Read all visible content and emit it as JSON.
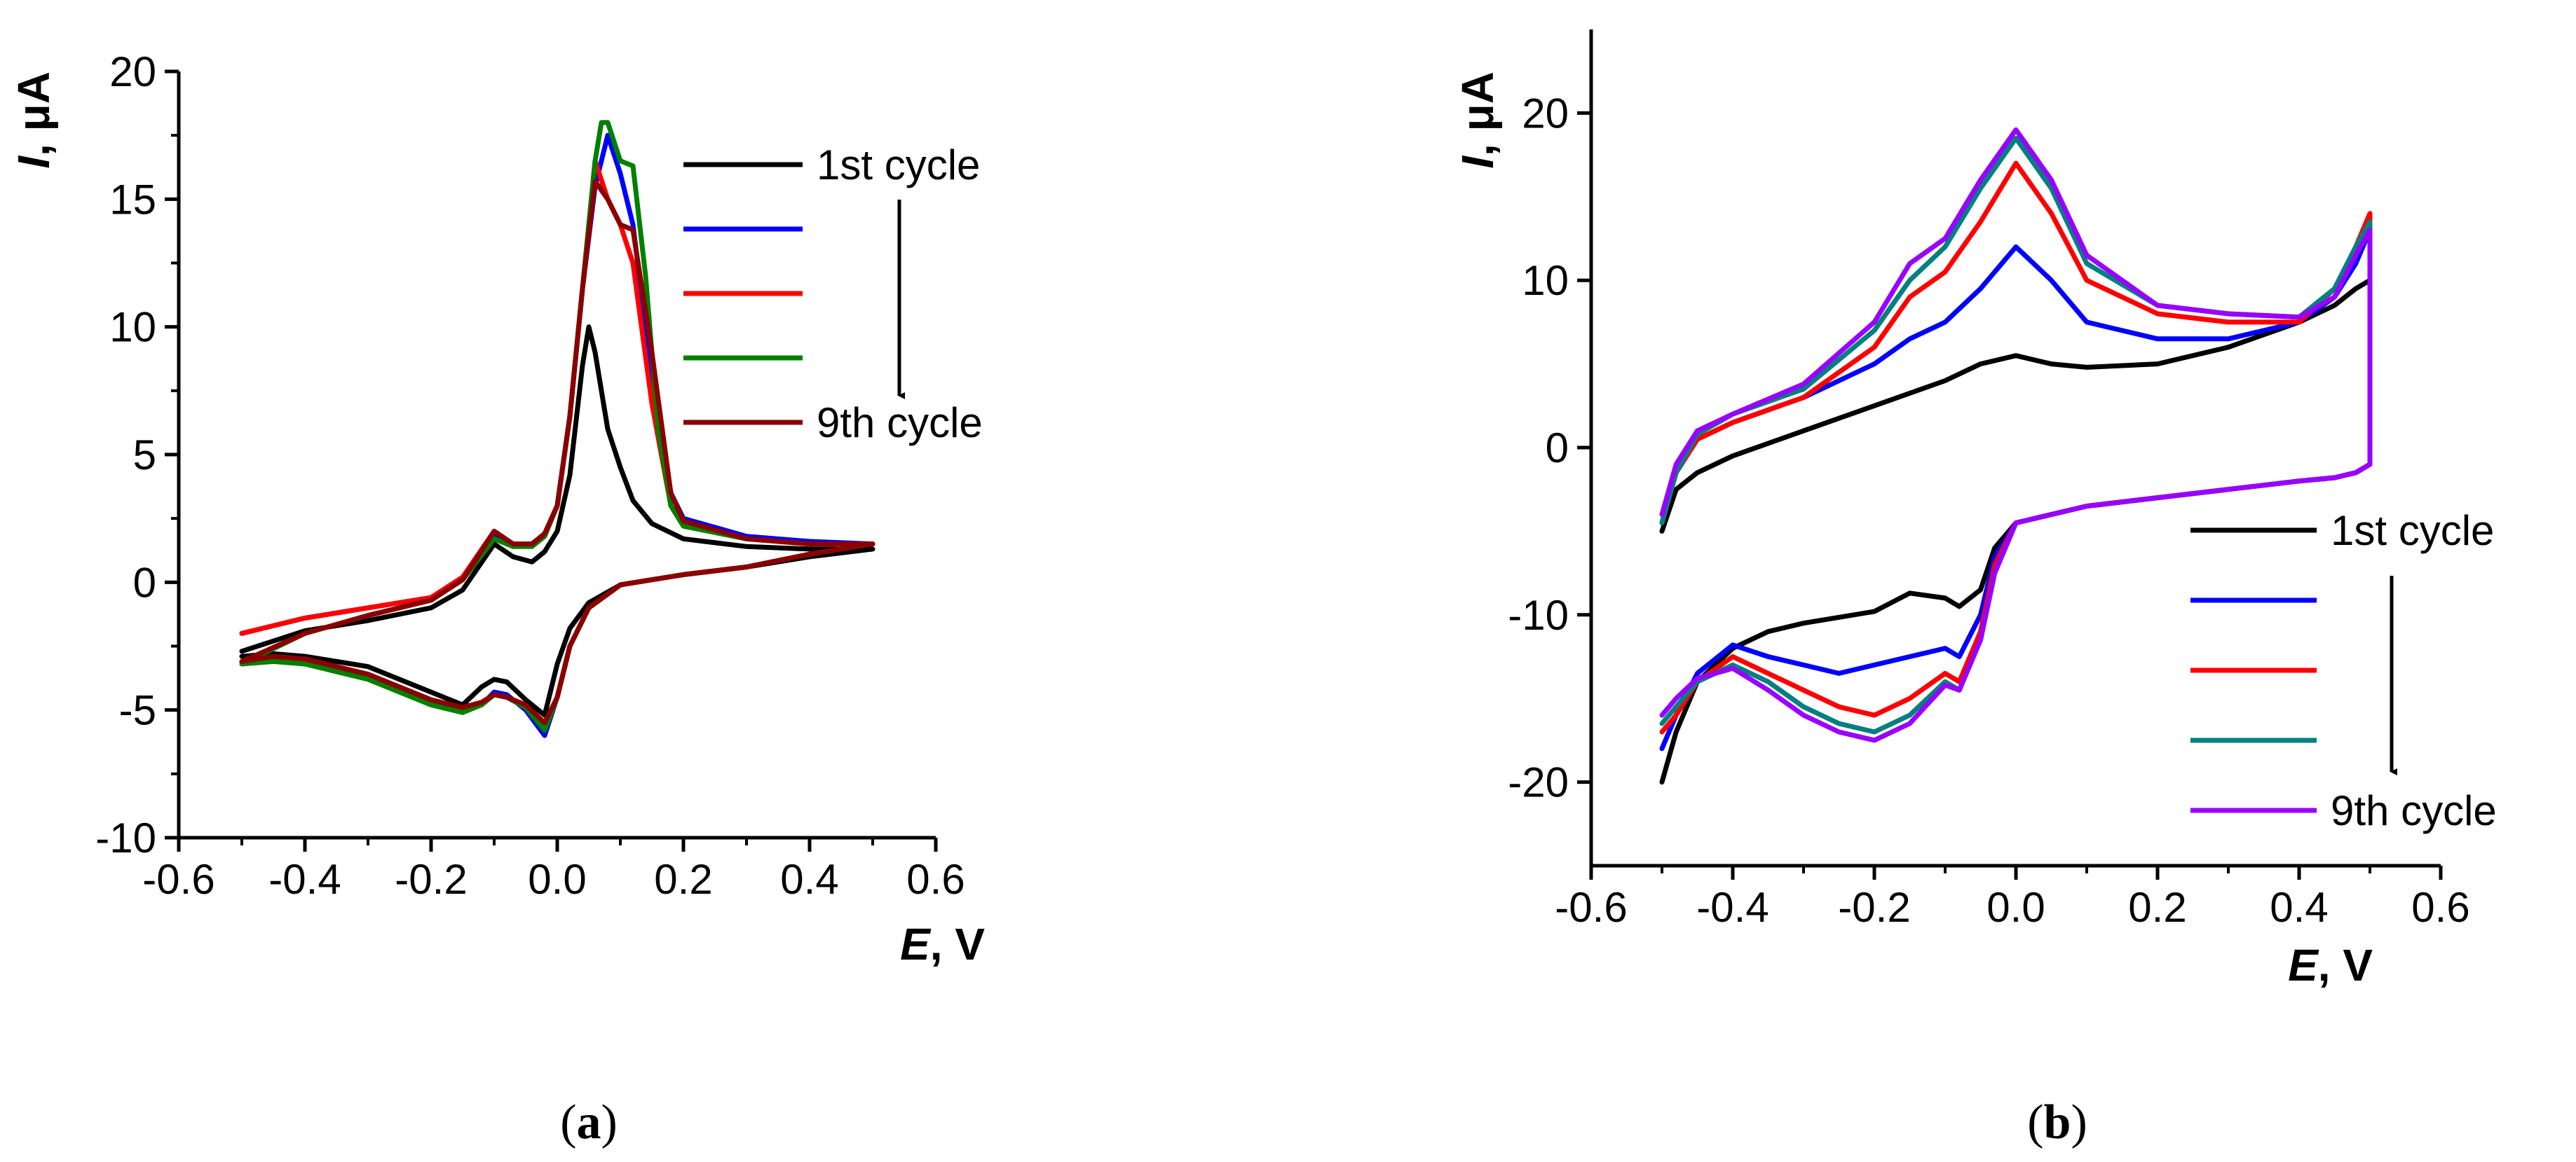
{
  "chart_data": [
    {
      "type": "line",
      "panel": "a",
      "caption": "(a)",
      "xlabel": "E, V",
      "ylabel": "I, μA",
      "xlim": [
        -0.6,
        0.6
      ],
      "ylim": [
        -10,
        20
      ],
      "xticks": [
        -0.6,
        -0.4,
        -0.2,
        0.0,
        0.2,
        0.4,
        0.6
      ],
      "xtick_labels": [
        "-0.6",
        "-0.4",
        "-0.2",
        "0.0",
        "0.2",
        "0.4",
        "0.6"
      ],
      "yticks": [
        -10,
        -5,
        0,
        5,
        10,
        15,
        20
      ],
      "ytick_labels": [
        "-10",
        "-5",
        "0",
        "5",
        "10",
        "15",
        "20"
      ],
      "legend_position": "top-right",
      "legend_arrow_from": "1st cycle",
      "legend_arrow_to": "9th cycle",
      "series": [
        {
          "name": "1st cycle",
          "color": "#000000",
          "x": [
            -0.5,
            -0.4,
            -0.3,
            -0.2,
            -0.15,
            -0.1,
            -0.07,
            -0.04,
            -0.02,
            0.0,
            0.02,
            0.04,
            0.05,
            0.06,
            0.08,
            0.1,
            0.12,
            0.15,
            0.2,
            0.3,
            0.4,
            0.5,
            0.5,
            0.4,
            0.3,
            0.2,
            0.1,
            0.05,
            0.02,
            0.0,
            -0.02,
            -0.05,
            -0.08,
            -0.1,
            -0.12,
            -0.15,
            -0.2,
            -0.3,
            -0.4,
            -0.45,
            -0.5
          ],
          "y": [
            -2.7,
            -1.9,
            -1.5,
            -1.0,
            -0.3,
            1.5,
            1.0,
            0.8,
            1.2,
            2.0,
            4.2,
            8.5,
            10.0,
            9.0,
            6.0,
            4.5,
            3.2,
            2.3,
            1.7,
            1.4,
            1.3,
            1.3,
            1.3,
            1.0,
            0.6,
            0.3,
            -0.1,
            -0.8,
            -1.8,
            -3.2,
            -5.2,
            -4.6,
            -3.9,
            -3.8,
            -4.1,
            -4.8,
            -4.3,
            -3.3,
            -2.9,
            -2.8,
            -2.9
          ]
        },
        {
          "name": "",
          "color": "#0000ff",
          "x": [
            -0.5,
            -0.4,
            -0.3,
            -0.2,
            -0.15,
            -0.1,
            -0.07,
            -0.04,
            -0.02,
            0.0,
            0.02,
            0.04,
            0.06,
            0.08,
            0.1,
            0.12,
            0.15,
            0.18,
            0.2,
            0.3,
            0.4,
            0.5,
            0.5,
            0.4,
            0.3,
            0.2,
            0.1,
            0.05,
            0.02,
            0.0,
            -0.02,
            -0.05,
            -0.08,
            -0.1,
            -0.12,
            -0.15,
            -0.2,
            -0.3,
            -0.4,
            -0.45,
            -0.5
          ],
          "y": [
            -2.0,
            -1.4,
            -1.0,
            -0.6,
            0.2,
            1.8,
            1.4,
            1.5,
            1.9,
            3.0,
            6.5,
            11.5,
            15.5,
            17.5,
            16.0,
            14.0,
            8.0,
            3.5,
            2.5,
            1.8,
            1.6,
            1.5,
            1.5,
            1.1,
            0.6,
            0.3,
            -0.1,
            -1.0,
            -2.5,
            -4.5,
            -6.0,
            -5.0,
            -4.4,
            -4.3,
            -4.8,
            -5.0,
            -4.6,
            -3.6,
            -3.1,
            -3.0,
            -3.1
          ]
        },
        {
          "name": "",
          "color": "#ff0000",
          "x": [
            -0.5,
            -0.4,
            -0.3,
            -0.2,
            -0.15,
            -0.1,
            -0.07,
            -0.04,
            -0.02,
            0.0,
            0.02,
            0.04,
            0.06,
            0.08,
            0.1,
            0.12,
            0.15,
            0.18,
            0.2,
            0.3,
            0.4,
            0.5,
            0.5,
            0.4,
            0.3,
            0.2,
            0.1,
            0.05,
            0.02,
            0.0,
            -0.02,
            -0.05,
            -0.08,
            -0.1,
            -0.12,
            -0.15,
            -0.2,
            -0.3,
            -0.4,
            -0.45,
            -0.5
          ],
          "y": [
            -2.0,
            -1.4,
            -1.0,
            -0.6,
            0.2,
            2.0,
            1.5,
            1.5,
            1.9,
            3.0,
            6.5,
            11.5,
            16.5,
            15.0,
            14.0,
            12.5,
            7.0,
            3.0,
            2.2,
            1.7,
            1.5,
            1.5,
            1.5,
            1.1,
            0.6,
            0.3,
            -0.1,
            -1.0,
            -2.5,
            -4.5,
            -5.8,
            -4.9,
            -4.5,
            -4.4,
            -4.7,
            -4.9,
            -4.6,
            -3.6,
            -3.0,
            -3.0,
            -3.1
          ]
        },
        {
          "name": "",
          "color": "#008000",
          "x": [
            -0.5,
            -0.4,
            -0.3,
            -0.2,
            -0.15,
            -0.1,
            -0.07,
            -0.04,
            -0.02,
            0.0,
            0.02,
            0.04,
            0.06,
            0.07,
            0.08,
            0.1,
            0.12,
            0.14,
            0.16,
            0.18,
            0.2,
            0.3,
            0.4,
            0.5,
            0.5,
            0.4,
            0.3,
            0.2,
            0.1,
            0.05,
            0.02,
            0.0,
            -0.02,
            -0.05,
            -0.08,
            -0.1,
            -0.12,
            -0.15,
            -0.2,
            -0.3,
            -0.4,
            -0.45,
            -0.5
          ],
          "y": [
            -3.2,
            -2.0,
            -1.3,
            -0.7,
            0.1,
            1.7,
            1.4,
            1.4,
            1.8,
            3.0,
            6.5,
            11.5,
            16.5,
            18.0,
            18.0,
            16.5,
            16.3,
            12.0,
            6.0,
            3.0,
            2.2,
            1.7,
            1.5,
            1.5,
            1.5,
            1.1,
            0.6,
            0.3,
            -0.1,
            -1.0,
            -2.5,
            -4.5,
            -5.8,
            -4.9,
            -4.5,
            -4.4,
            -4.8,
            -5.1,
            -4.8,
            -3.8,
            -3.2,
            -3.1,
            -3.2
          ]
        },
        {
          "name": "9th cycle",
          "color": "#8b0000",
          "x": [
            -0.5,
            -0.4,
            -0.3,
            -0.2,
            -0.15,
            -0.1,
            -0.07,
            -0.04,
            -0.02,
            0.0,
            0.02,
            0.04,
            0.06,
            0.08,
            0.1,
            0.12,
            0.15,
            0.18,
            0.2,
            0.3,
            0.4,
            0.5,
            0.5,
            0.4,
            0.3,
            0.2,
            0.1,
            0.05,
            0.02,
            0.0,
            -0.02,
            -0.05,
            -0.08,
            -0.1,
            -0.12,
            -0.15,
            -0.2,
            -0.3,
            -0.4,
            -0.45,
            -0.5
          ],
          "y": [
            -3.1,
            -2.0,
            -1.3,
            -0.7,
            0.1,
            2.0,
            1.5,
            1.5,
            1.9,
            3.0,
            6.5,
            11.5,
            15.7,
            15.0,
            14.0,
            13.8,
            9.0,
            3.5,
            2.4,
            1.7,
            1.5,
            1.5,
            1.5,
            1.1,
            0.6,
            0.3,
            -0.1,
            -1.0,
            -2.5,
            -4.5,
            -5.5,
            -4.8,
            -4.5,
            -4.4,
            -4.7,
            -4.9,
            -4.6,
            -3.6,
            -3.0,
            -2.9,
            -3.1
          ]
        }
      ]
    },
    {
      "type": "line",
      "panel": "b",
      "caption": "(b)",
      "xlabel": "E, V",
      "ylabel": "I, μA",
      "xlim": [
        -0.6,
        0.6
      ],
      "ylim": [
        -25,
        25
      ],
      "xticks": [
        -0.6,
        -0.4,
        -0.2,
        0.0,
        0.2,
        0.4,
        0.6
      ],
      "xtick_labels": [
        "-0.6",
        "-0.4",
        "-0.2",
        "0.0",
        "0.2",
        "0.4",
        "0.6"
      ],
      "yticks": [
        -20,
        -10,
        0,
        10,
        20
      ],
      "ytick_labels": [
        "-20",
        "-10",
        "0",
        "10",
        "20"
      ],
      "legend_position": "bottom-right",
      "legend_arrow_from": "1st cycle",
      "legend_arrow_to": "9th cycle",
      "series": [
        {
          "name": "1st cycle",
          "color": "#000000",
          "x": [
            -0.5,
            -0.48,
            -0.45,
            -0.4,
            -0.3,
            -0.2,
            -0.1,
            -0.05,
            0.0,
            0.05,
            0.1,
            0.2,
            0.3,
            0.4,
            0.45,
            0.48,
            0.5,
            0.5,
            0.48,
            0.45,
            0.4,
            0.3,
            0.2,
            0.1,
            0.0,
            -0.03,
            -0.05,
            -0.08,
            -0.1,
            -0.15,
            -0.2,
            -0.3,
            -0.35,
            -0.4,
            -0.45,
            -0.48,
            -0.5
          ],
          "y": [
            -5.0,
            -2.5,
            -1.5,
            -0.5,
            1.0,
            2.5,
            4.0,
            5.0,
            5.5,
            5.0,
            4.8,
            5.0,
            6.0,
            7.5,
            8.5,
            9.5,
            10.0,
            -1.0,
            -1.5,
            -1.8,
            -2.0,
            -2.5,
            -3.0,
            -3.5,
            -4.5,
            -6.0,
            -8.5,
            -9.5,
            -9.0,
            -8.7,
            -9.8,
            -10.5,
            -11.0,
            -12.0,
            -14.0,
            -17.0,
            -20.0
          ]
        },
        {
          "name": "",
          "color": "#0000ff",
          "x": [
            -0.5,
            -0.48,
            -0.45,
            -0.4,
            -0.3,
            -0.2,
            -0.15,
            -0.1,
            -0.05,
            0.0,
            0.05,
            0.1,
            0.2,
            0.3,
            0.4,
            0.45,
            0.48,
            0.5,
            0.5,
            0.48,
            0.45,
            0.4,
            0.3,
            0.2,
            0.1,
            0.0,
            -0.03,
            -0.05,
            -0.08,
            -0.1,
            -0.15,
            -0.2,
            -0.25,
            -0.3,
            -0.35,
            -0.4,
            -0.45,
            -0.48,
            -0.5
          ],
          "y": [
            -4.5,
            -1.5,
            0.5,
            1.5,
            3.0,
            5.0,
            6.5,
            7.5,
            9.5,
            12.0,
            10.0,
            7.5,
            6.5,
            6.5,
            7.5,
            9.0,
            11.0,
            13.0,
            -1.0,
            -1.5,
            -1.8,
            -2.0,
            -2.5,
            -3.0,
            -3.5,
            -4.5,
            -6.5,
            -10.0,
            -12.5,
            -12.0,
            -12.5,
            -13.0,
            -13.5,
            -13.0,
            -12.5,
            -11.8,
            -13.5,
            -16.0,
            -18.0
          ]
        },
        {
          "name": "",
          "color": "#ff0000",
          "x": [
            -0.5,
            -0.48,
            -0.45,
            -0.4,
            -0.3,
            -0.2,
            -0.15,
            -0.1,
            -0.05,
            0.0,
            0.05,
            0.1,
            0.2,
            0.3,
            0.4,
            0.45,
            0.48,
            0.5,
            0.5,
            0.48,
            0.45,
            0.4,
            0.3,
            0.2,
            0.1,
            0.0,
            -0.03,
            -0.05,
            -0.08,
            -0.1,
            -0.15,
            -0.2,
            -0.25,
            -0.3,
            -0.35,
            -0.4,
            -0.45,
            -0.48,
            -0.5
          ],
          "y": [
            -4.5,
            -1.5,
            0.5,
            1.5,
            3.0,
            6.0,
            9.0,
            10.5,
            13.5,
            17.0,
            14.0,
            10.0,
            8.0,
            7.5,
            7.5,
            9.5,
            12.0,
            14.0,
            -1.0,
            -1.5,
            -1.8,
            -2.0,
            -2.5,
            -3.0,
            -3.5,
            -4.5,
            -7.0,
            -11.0,
            -14.0,
            -13.5,
            -15.0,
            -16.0,
            -15.5,
            -14.5,
            -13.5,
            -12.5,
            -14.0,
            -16.0,
            -17.0
          ]
        },
        {
          "name": "",
          "color": "#008080",
          "x": [
            -0.5,
            -0.48,
            -0.45,
            -0.4,
            -0.3,
            -0.2,
            -0.15,
            -0.1,
            -0.05,
            0.0,
            0.05,
            0.1,
            0.2,
            0.3,
            0.4,
            0.45,
            0.48,
            0.5,
            0.5,
            0.48,
            0.45,
            0.4,
            0.3,
            0.2,
            0.1,
            0.0,
            -0.03,
            -0.05,
            -0.08,
            -0.1,
            -0.15,
            -0.2,
            -0.25,
            -0.3,
            -0.35,
            -0.4,
            -0.45,
            -0.48,
            -0.5
          ],
          "y": [
            -4.5,
            -1.5,
            0.8,
            2.0,
            3.5,
            7.0,
            10.0,
            12.0,
            15.5,
            18.5,
            15.5,
            11.0,
            8.5,
            8.0,
            7.8,
            9.5,
            12.0,
            13.5,
            -1.0,
            -1.5,
            -1.8,
            -2.0,
            -2.5,
            -3.0,
            -3.5,
            -4.5,
            -7.5,
            -11.5,
            -14.5,
            -14.0,
            -16.0,
            -17.0,
            -16.5,
            -15.5,
            -14.0,
            -13.0,
            -14.0,
            -15.5,
            -16.5
          ]
        },
        {
          "name": "9th cycle",
          "color": "#9900ff",
          "x": [
            -0.5,
            -0.48,
            -0.45,
            -0.4,
            -0.3,
            -0.2,
            -0.15,
            -0.1,
            -0.05,
            0.0,
            0.05,
            0.1,
            0.2,
            0.3,
            0.4,
            0.45,
            0.48,
            0.5,
            0.5,
            0.48,
            0.45,
            0.4,
            0.3,
            0.2,
            0.1,
            0.0,
            -0.03,
            -0.05,
            -0.08,
            -0.1,
            -0.15,
            -0.2,
            -0.25,
            -0.3,
            -0.35,
            -0.4,
            -0.45,
            -0.48,
            -0.5
          ],
          "y": [
            -4.0,
            -1.0,
            1.0,
            2.0,
            3.8,
            7.5,
            11.0,
            12.5,
            16.0,
            19.0,
            16.0,
            11.5,
            8.5,
            8.0,
            7.8,
            9.0,
            11.5,
            13.0,
            -1.0,
            -1.5,
            -1.8,
            -2.0,
            -2.5,
            -3.0,
            -3.5,
            -4.5,
            -7.5,
            -11.5,
            -14.5,
            -14.2,
            -16.5,
            -17.5,
            -17.0,
            -16.0,
            -14.5,
            -13.2,
            -13.8,
            -15.0,
            -16.0
          ]
        }
      ]
    }
  ]
}
